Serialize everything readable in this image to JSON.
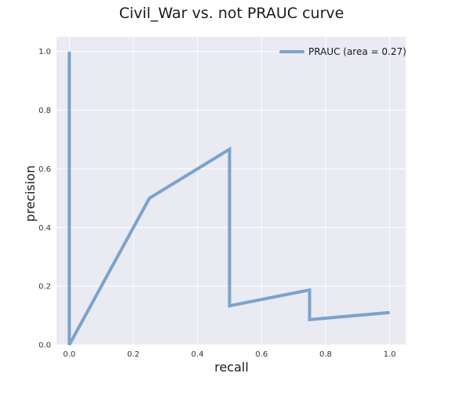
{
  "chart_data": {
    "type": "line",
    "title": "Civil_War vs. not PRAUC curve",
    "xlabel": "recall",
    "ylabel": "precision",
    "xlim": [
      -0.04,
      1.05
    ],
    "ylim": [
      0.0,
      1.05
    ],
    "xticks": [
      0.0,
      0.2,
      0.4,
      0.6,
      0.8,
      1.0
    ],
    "yticks": [
      0.0,
      0.2,
      0.4,
      0.6,
      0.8,
      1.0
    ],
    "xtick_labels": [
      "0.0",
      "0.2",
      "0.4",
      "0.6",
      "0.8",
      "1.0"
    ],
    "ytick_labels": [
      "0.0",
      "0.2",
      "0.4",
      "0.6",
      "0.8",
      "1.0"
    ],
    "grid": true,
    "legend_position": "top-right",
    "series": [
      {
        "name": "PRAUC (area = 0.27)",
        "color": "#7ba3cc",
        "x": [
          0.0,
          0.0,
          0.25,
          0.5,
          0.5,
          0.75,
          0.75,
          1.0
        ],
        "y": [
          1.0,
          0.0,
          0.5,
          0.667,
          0.133,
          0.187,
          0.086,
          0.11
        ]
      }
    ]
  }
}
